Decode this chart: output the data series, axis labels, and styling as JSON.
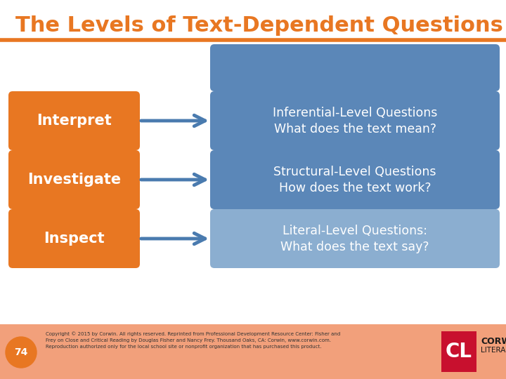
{
  "bg_color": "#ffffff",
  "title": "The Levels of Text-Dependent Questions",
  "title_color": "#E87722",
  "title_fontsize": 22,
  "orange_color": "#E87722",
  "blue_dark": "#4A7BAF",
  "blue_mid": "#5B87B8",
  "blue_light": "#8BAED0",
  "line_color": "#E87722",
  "footer_bg": "#F2A07B",
  "rows": [
    {
      "left_label": "Interpret",
      "right_line1": "Inferential-Level Questions",
      "right_line2": "What does the text mean?",
      "right_color": "#5B87B8"
    },
    {
      "left_label": "Investigate",
      "right_line1": "Structural-Level Questions",
      "right_line2": "How does the text work?",
      "right_color": "#5B87B8"
    },
    {
      "left_label": "Inspect",
      "right_line1": "Literal-Level Questions:",
      "right_line2": "What does the text say?",
      "right_color": "#8BAED0"
    }
  ],
  "top_blue_box_color": "#5B87B8",
  "footer_text": "Copyright © 2015 by Corwin. All rights reserved. Reprinted from Professional Development Resource Center: Fisher and\nFrey on Close and Critical Reading by Douglas Fisher and Nancy Frey. Thousand Oaks, CA: Corwin, www.corwin.com.\nReproduction authorized only for the local school site or nonprofit organization that has purchased this product.",
  "page_num": "74",
  "corwin_red": "#C8102E"
}
